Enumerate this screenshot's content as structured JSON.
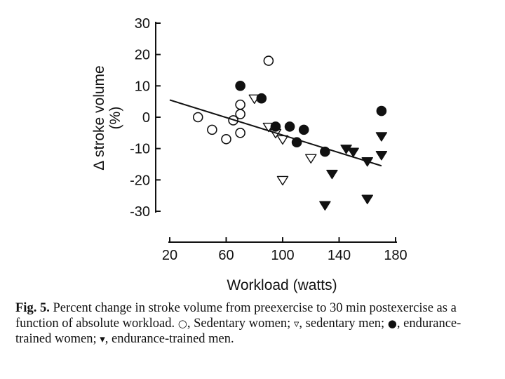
{
  "chart_data": {
    "type": "scatter",
    "xlabel": "Workload (watts)",
    "ylabel_line1": "Δ stroke volume",
    "ylabel_line2": "(%)",
    "xlim": [
      20,
      180
    ],
    "ylim": [
      -30,
      30
    ],
    "xticks": [
      "20",
      "60",
      "100",
      "140",
      "180"
    ],
    "yticks": [
      "30",
      "20",
      "10",
      "0",
      "-10",
      "-20",
      "-30"
    ],
    "series": [
      {
        "name": "Sedentary women",
        "marker": "open-circle",
        "points": [
          [
            40,
            0
          ],
          [
            50,
            -4
          ],
          [
            60,
            -7
          ],
          [
            65,
            -1
          ],
          [
            70,
            4
          ],
          [
            70,
            1
          ],
          [
            70,
            -5
          ],
          [
            90,
            18
          ]
        ]
      },
      {
        "name": "sedentary men",
        "marker": "open-triangle-down",
        "points": [
          [
            80,
            6
          ],
          [
            90,
            -3
          ],
          [
            95,
            -5
          ],
          [
            100,
            -7
          ],
          [
            100,
            -20
          ],
          [
            120,
            -13
          ]
        ]
      },
      {
        "name": "endurance-trained women",
        "marker": "filled-circle",
        "points": [
          [
            70,
            10
          ],
          [
            85,
            6
          ],
          [
            95,
            -3
          ],
          [
            105,
            -3
          ],
          [
            110,
            -8
          ],
          [
            115,
            -4
          ],
          [
            130,
            -11
          ],
          [
            170,
            2
          ]
        ]
      },
      {
        "name": "endurance-trained men",
        "marker": "filled-triangle-down",
        "points": [
          [
            130,
            -28
          ],
          [
            135,
            -18
          ],
          [
            145,
            -10
          ],
          [
            150,
            -11
          ],
          [
            160,
            -14
          ],
          [
            160,
            -26
          ],
          [
            170,
            -6
          ],
          [
            170,
            -12
          ]
        ]
      }
    ],
    "regression_line": {
      "x": [
        20,
        170
      ],
      "y": [
        5.5,
        -15.5
      ]
    }
  },
  "caption": {
    "lead": "Fig. 5.",
    "text_a": "Percent change in stroke volume from preexercise to 30 min postexercise as a function of absolute workload.",
    "sym_open_circle": "○",
    "label_open_circle": ", Sedentary women;",
    "sym_open_triangle": "▿",
    "label_open_triangle": ", sedentary men;",
    "sym_filled_circle": "●",
    "label_filled_circle": ", endurance-trained women;",
    "sym_filled_triangle": "▾",
    "label_filled_triangle": ", endurance-trained men."
  }
}
